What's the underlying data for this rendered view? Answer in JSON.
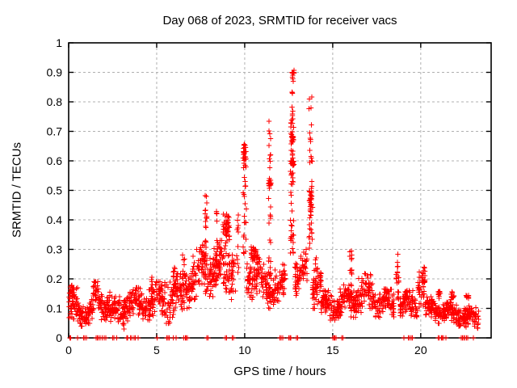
{
  "chart_data": {
    "type": "scatter",
    "title": "Day 068 of 2023, SRMTID for receiver vacs",
    "xlabel": "GPS time / hours",
    "ylabel": "SRMTID / TECUs",
    "xlim": [
      0,
      24
    ],
    "ylim": [
      0,
      1
    ],
    "xticks": [
      {
        "v": 0,
        "label": "0"
      },
      {
        "v": 5,
        "label": "5"
      },
      {
        "v": 10,
        "label": "10"
      },
      {
        "v": 15,
        "label": "15"
      },
      {
        "v": 20,
        "label": "20"
      }
    ],
    "yticks": [
      {
        "v": 0,
        "label": "0"
      },
      {
        "v": 0.1,
        "label": "0.1"
      },
      {
        "v": 0.2,
        "label": "0.2"
      },
      {
        "v": 0.3,
        "label": "0.3"
      },
      {
        "v": 0.4,
        "label": "0.4"
      },
      {
        "v": 0.5,
        "label": "0.5"
      },
      {
        "v": 0.6,
        "label": "0.6"
      },
      {
        "v": 0.7,
        "label": "0.7"
      },
      {
        "v": 0.8,
        "label": "0.8"
      },
      {
        "v": 0.9,
        "label": "0.9"
      },
      {
        "v": 1,
        "label": "1"
      }
    ],
    "grid": true,
    "legend": null,
    "marker": "plus",
    "marker_color": "#ff0000",
    "grid_color": "#b0b0b0",
    "border_color": "#000000",
    "seed": 68,
    "series_name": "SRMTID",
    "peak_values": [
      {
        "x": 7.8,
        "y": 0.51
      },
      {
        "x": 10.0,
        "y": 0.685
      },
      {
        "x": 11.4,
        "y": 0.76
      },
      {
        "x": 12.75,
        "y": 0.92
      },
      {
        "x": 13.75,
        "y": 0.83
      },
      {
        "x": 16.0,
        "y": 0.3
      },
      {
        "x": 18.7,
        "y": 0.31
      },
      {
        "x": 20.0,
        "y": 0.27
      }
    ],
    "clusters": [
      [
        "b",
        0.02,
        0.5,
        0.03,
        0.17,
        50
      ],
      [
        "t",
        0.08,
        0.2,
        0.13,
        0.2,
        8
      ],
      [
        "b",
        0.5,
        1.35,
        0.04,
        0.13,
        75
      ],
      [
        "b",
        1.35,
        2.35,
        0.06,
        0.19,
        90
      ],
      [
        "b",
        2.35,
        3.15,
        0.03,
        0.14,
        70
      ],
      [
        "b",
        3.15,
        4.35,
        0.05,
        0.17,
        105
      ],
      [
        "b",
        4.35,
        5.45,
        0.06,
        0.19,
        95
      ],
      [
        "u",
        4.65,
        4.75,
        0.12,
        0.22,
        8
      ],
      [
        "u",
        5.15,
        5.3,
        0.12,
        0.21,
        8
      ],
      [
        "b",
        5.45,
        6.45,
        0.05,
        0.23,
        90
      ],
      [
        "u",
        5.95,
        6.05,
        0.14,
        0.26,
        7
      ],
      [
        "b",
        6.45,
        7.45,
        0.1,
        0.3,
        95
      ],
      [
        "b",
        7.45,
        8.2,
        0.14,
        0.33,
        72
      ],
      [
        "u",
        7.75,
        7.85,
        0.25,
        0.51,
        20
      ],
      [
        "u",
        8.35,
        8.45,
        0.18,
        0.46,
        16
      ],
      [
        "b",
        8.2,
        9.5,
        0.13,
        0.33,
        115
      ],
      [
        "t",
        8.75,
        9.15,
        0.31,
        0.45,
        38
      ],
      [
        "u",
        9.55,
        9.65,
        0.2,
        0.44,
        12
      ],
      [
        "u",
        9.9,
        10.1,
        0.28,
        0.56,
        22
      ],
      [
        "t",
        9.92,
        10.08,
        0.56,
        0.685,
        26
      ],
      [
        "b",
        10.1,
        10.85,
        0.13,
        0.3,
        70
      ],
      [
        "t",
        10.35,
        10.7,
        0.24,
        0.33,
        30
      ],
      [
        "u",
        11.35,
        11.5,
        0.2,
        0.74,
        30
      ],
      [
        "t",
        11.36,
        11.5,
        0.5,
        0.545,
        16
      ],
      [
        "b",
        10.85,
        12.3,
        0.1,
        0.25,
        130
      ],
      [
        "u",
        12.6,
        12.8,
        0.28,
        0.55,
        26
      ],
      [
        "u",
        12.6,
        12.8,
        0.55,
        0.74,
        26
      ],
      [
        "t",
        12.62,
        12.75,
        0.57,
        0.61,
        12
      ],
      [
        "t",
        12.66,
        12.78,
        0.655,
        0.7,
        12
      ],
      [
        "u",
        12.68,
        12.78,
        0.74,
        0.84,
        8
      ],
      [
        "t",
        12.68,
        12.8,
        0.86,
        0.92,
        11
      ],
      [
        "b",
        12.85,
        13.55,
        0.13,
        0.3,
        65
      ],
      [
        "u",
        13.65,
        13.85,
        0.3,
        0.83,
        38
      ],
      [
        "t",
        13.68,
        13.8,
        0.38,
        0.52,
        20
      ],
      [
        "b",
        13.85,
        14.35,
        0.1,
        0.26,
        55
      ],
      [
        "u",
        14.0,
        14.12,
        0.16,
        0.28,
        10
      ],
      [
        "b",
        14.35,
        15.4,
        0.06,
        0.16,
        95
      ],
      [
        "u",
        15.95,
        16.1,
        0.13,
        0.3,
        20
      ],
      [
        "b",
        15.4,
        16.4,
        0.07,
        0.18,
        85
      ],
      [
        "b",
        16.4,
        17.4,
        0.08,
        0.22,
        85
      ],
      [
        "b",
        17.4,
        18.5,
        0.07,
        0.17,
        95
      ],
      [
        "u",
        18.6,
        18.8,
        0.13,
        0.31,
        22
      ],
      [
        "b",
        18.8,
        19.8,
        0.06,
        0.16,
        90
      ],
      [
        "b",
        19.8,
        20.25,
        0.1,
        0.27,
        45
      ],
      [
        "b",
        20.25,
        21.3,
        0.05,
        0.14,
        95
      ],
      [
        "t",
        20.95,
        21.15,
        0.12,
        0.175,
        12
      ],
      [
        "b",
        21.3,
        22.4,
        0.04,
        0.12,
        100
      ],
      [
        "t",
        21.7,
        21.9,
        0.12,
        0.165,
        10
      ],
      [
        "b",
        22.4,
        23.3,
        0.03,
        0.11,
        85
      ],
      [
        "t",
        22.55,
        22.75,
        0.12,
        0.155,
        8
      ]
    ],
    "zero_points": [
      0.07,
      0.12,
      0.5,
      0.85,
      0.92,
      1.02,
      1.55,
      1.62,
      1.7,
      1.78,
      1.9,
      2.02,
      2.1,
      2.5,
      2.56,
      2.72,
      3.3,
      3.36,
      3.52,
      3.57,
      3.72,
      3.78,
      3.95,
      5.02,
      5.58,
      5.65,
      5.72,
      5.95,
      6.1,
      6.55,
      6.62,
      6.68,
      6.75,
      7.85,
      7.92,
      8.9,
      8.97,
      9.3,
      9.37,
      12.0,
      12.07,
      12.17,
      12.5,
      12.57,
      12.63,
      12.95,
      13.02,
      15.0,
      15.07,
      15.12,
      15.18,
      15.5,
      15.57,
      19.05,
      19.3,
      19.37,
      19.45,
      19.52,
      21.0,
      21.07,
      21.17,
      21.23,
      21.3,
      21.42,
      22.3,
      22.37,
      22.45,
      22.5,
      22.6,
      22.67,
      23.0
    ]
  }
}
